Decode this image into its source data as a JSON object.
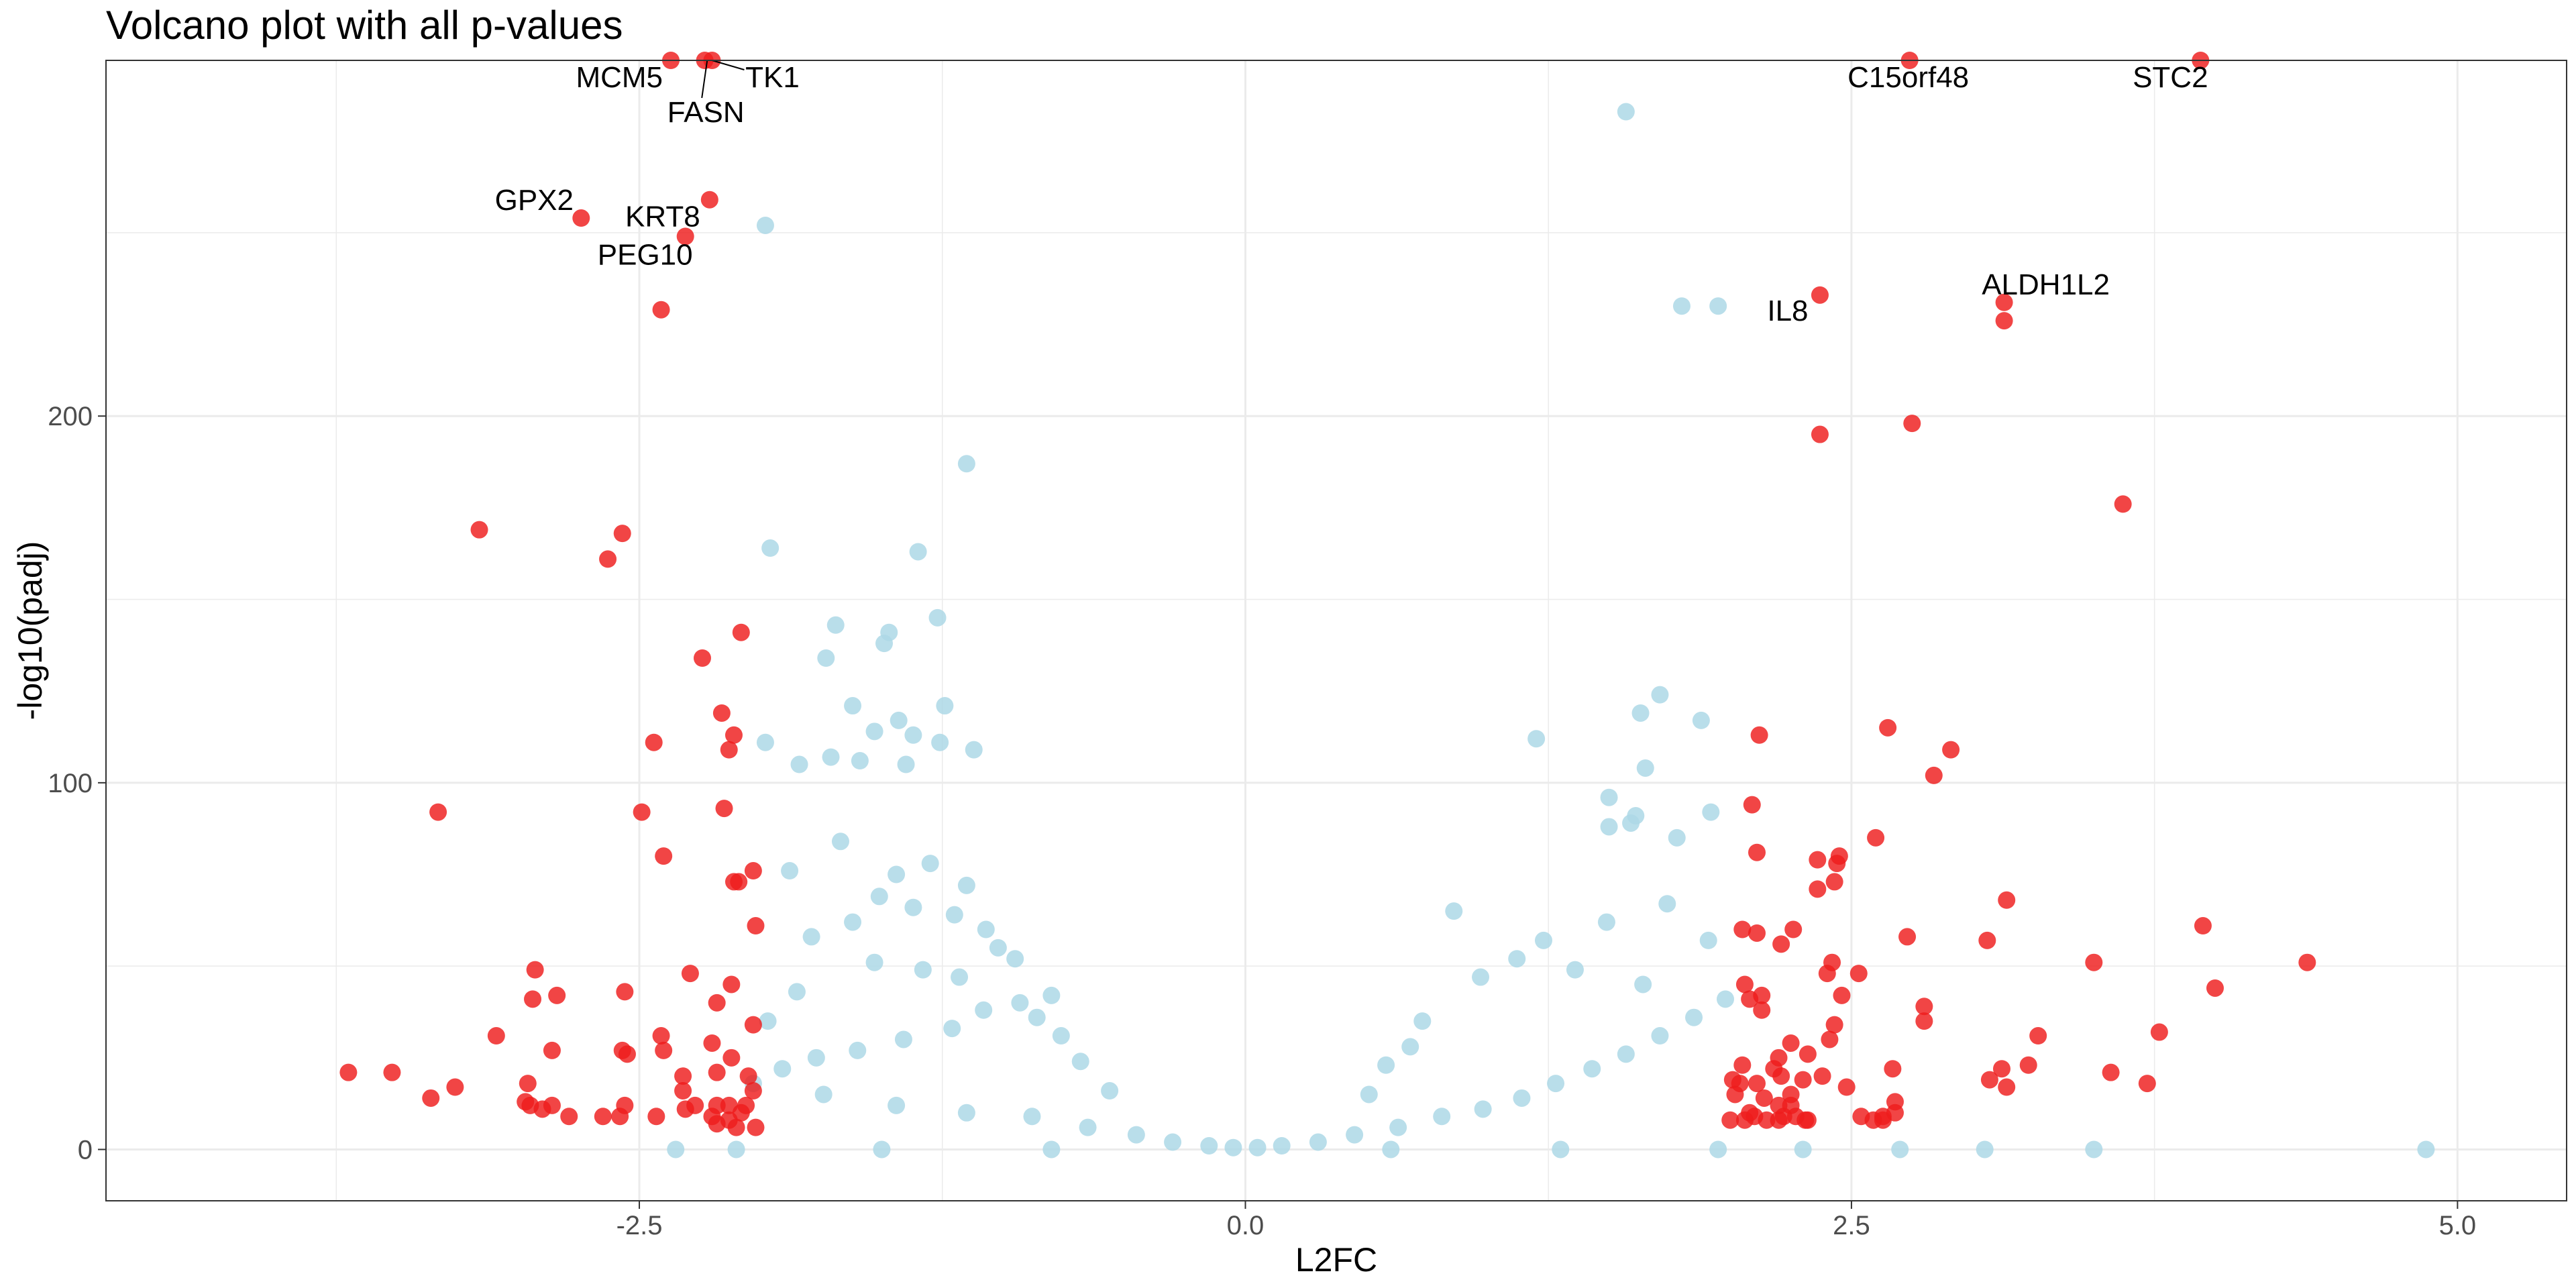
{
  "chart_data": {
    "type": "scatter",
    "title": "Volcano plot with all p-values",
    "xlabel": "L2FC",
    "ylabel": "-log10(padj)",
    "xlim": [
      -4.7,
      5.45
    ],
    "ylim": [
      -14,
      297
    ],
    "xticks": [
      -2.5,
      0.0,
      2.5,
      5.0
    ],
    "xtick_labels": [
      "-2.5",
      "0.0",
      "2.5",
      "5.0"
    ],
    "yticks": [
      0,
      100,
      200
    ],
    "ytick_labels": [
      "0",
      "100",
      "200"
    ],
    "grid": true,
    "legend": "none",
    "colors": {
      "not_significant": "#add8e6",
      "significant": "#ee1c1c",
      "panel_border": "#333333",
      "grid": "#ebebeb"
    },
    "series": [
      {
        "group": "significant",
        "points": [
          [
            -2.37,
            297
          ],
          [
            -2.23,
            297
          ],
          [
            -2.2,
            297
          ],
          [
            -2.21,
            259
          ],
          [
            -2.74,
            254
          ],
          [
            -2.31,
            249
          ],
          [
            -2.41,
            229
          ],
          [
            -3.16,
            169
          ],
          [
            -2.57,
            168
          ],
          [
            -2.63,
            161
          ],
          [
            -2.08,
            141
          ],
          [
            -2.24,
            134
          ],
          [
            -2.16,
            119
          ],
          [
            -2.44,
            111
          ],
          [
            -2.11,
            113
          ],
          [
            -2.13,
            109
          ],
          [
            -3.33,
            92
          ],
          [
            -2.49,
            92
          ],
          [
            -2.15,
            93
          ],
          [
            -2.4,
            80
          ],
          [
            -2.03,
            76
          ],
          [
            -2.09,
            73
          ],
          [
            -2.11,
            73
          ],
          [
            -2.02,
            61
          ],
          [
            -2.93,
            49
          ],
          [
            -2.29,
            48
          ],
          [
            -2.84,
            42
          ],
          [
            -2.94,
            41
          ],
          [
            -2.56,
            43
          ],
          [
            -2.12,
            45
          ],
          [
            -2.18,
            40
          ],
          [
            -3.09,
            31
          ],
          [
            -2.41,
            31
          ],
          [
            -2.4,
            27
          ],
          [
            -2.2,
            29
          ],
          [
            -2.03,
            34
          ],
          [
            -2.57,
            27
          ],
          [
            -2.55,
            26
          ],
          [
            -2.86,
            27
          ],
          [
            -2.12,
            25
          ],
          [
            -2.96,
            18
          ],
          [
            -2.32,
            20
          ],
          [
            -2.18,
            21
          ],
          [
            -2.05,
            20
          ],
          [
            -3.26,
            17
          ],
          [
            -3.36,
            14
          ],
          [
            -2.97,
            13
          ],
          [
            -2.95,
            12
          ],
          [
            -2.86,
            12
          ],
          [
            -2.56,
            12
          ],
          [
            -2.31,
            11
          ],
          [
            -2.27,
            12
          ],
          [
            -2.18,
            12
          ],
          [
            -2.13,
            12
          ],
          [
            -2.06,
            12
          ],
          [
            -2.2,
            9
          ],
          [
            -2.08,
            10
          ],
          [
            -2.9,
            11
          ],
          [
            -2.79,
            9
          ],
          [
            -2.65,
            9
          ],
          [
            -2.58,
            9
          ],
          [
            -2.43,
            9
          ],
          [
            -2.18,
            7
          ],
          [
            -2.13,
            8
          ],
          [
            -2.1,
            6
          ],
          [
            -2.02,
            6
          ],
          [
            -3.7,
            21
          ],
          [
            -3.52,
            21
          ],
          [
            -2.32,
            16
          ],
          [
            -2.03,
            16
          ],
          [
            2.74,
            297
          ],
          [
            3.94,
            297
          ],
          [
            2.37,
            233
          ],
          [
            3.13,
            231
          ],
          [
            3.13,
            226
          ],
          [
            2.37,
            195
          ],
          [
            2.75,
            198
          ],
          [
            3.62,
            176
          ],
          [
            2.12,
            113
          ],
          [
            2.65,
            115
          ],
          [
            2.91,
            109
          ],
          [
            2.84,
            102
          ],
          [
            2.09,
            94
          ],
          [
            2.11,
            81
          ],
          [
            2.36,
            79
          ],
          [
            2.45,
            80
          ],
          [
            2.44,
            78
          ],
          [
            2.36,
            71
          ],
          [
            2.43,
            73
          ],
          [
            2.6,
            85
          ],
          [
            3.14,
            68
          ],
          [
            2.73,
            58
          ],
          [
            3.06,
            57
          ],
          [
            2.05,
            60
          ],
          [
            2.11,
            59
          ],
          [
            2.26,
            60
          ],
          [
            2.21,
            56
          ],
          [
            3.5,
            51
          ],
          [
            3.95,
            61
          ],
          [
            4.38,
            51
          ],
          [
            4.0,
            44
          ],
          [
            2.42,
            51
          ],
          [
            2.53,
            48
          ],
          [
            2.4,
            48
          ],
          [
            2.06,
            45
          ],
          [
            2.13,
            42
          ],
          [
            2.08,
            41
          ],
          [
            2.13,
            38
          ],
          [
            2.8,
            39
          ],
          [
            2.8,
            35
          ],
          [
            2.46,
            42
          ],
          [
            2.43,
            34
          ],
          [
            3.77,
            32
          ],
          [
            3.27,
            31
          ],
          [
            2.25,
            29
          ],
          [
            2.32,
            26
          ],
          [
            2.41,
            30
          ],
          [
            2.2,
            25
          ],
          [
            2.05,
            23
          ],
          [
            2.01,
            19
          ],
          [
            2.04,
            18
          ],
          [
            2.11,
            18
          ],
          [
            2.18,
            22
          ],
          [
            2.38,
            20
          ],
          [
            2.3,
            19
          ],
          [
            2.21,
            20
          ],
          [
            2.67,
            22
          ],
          [
            3.07,
            19
          ],
          [
            3.12,
            22
          ],
          [
            3.23,
            23
          ],
          [
            3.14,
            17
          ],
          [
            3.57,
            21
          ],
          [
            3.72,
            18
          ],
          [
            2.02,
            15
          ],
          [
            2.14,
            14
          ],
          [
            2.25,
            15
          ],
          [
            2.48,
            17
          ],
          [
            2.2,
            12
          ],
          [
            2.25,
            12
          ],
          [
            2.08,
            10
          ],
          [
            2.1,
            9
          ],
          [
            2.15,
            8
          ],
          [
            2.22,
            9
          ],
          [
            2.27,
            9
          ],
          [
            2.32,
            8
          ],
          [
            2.59,
            8
          ],
          [
            2.63,
            9
          ],
          [
            2.68,
            10
          ],
          [
            2.68,
            13
          ],
          [
            2.0,
            8
          ],
          [
            2.06,
            8
          ],
          [
            2.2,
            8
          ],
          [
            2.31,
            8
          ],
          [
            2.54,
            9
          ],
          [
            2.63,
            8
          ]
        ]
      },
      {
        "group": "not_significant",
        "points": [
          [
            1.57,
            283
          ],
          [
            -1.98,
            252
          ],
          [
            1.8,
            230
          ],
          [
            1.95,
            230
          ],
          [
            -1.15,
            187
          ],
          [
            -1.96,
            164
          ],
          [
            -1.35,
            163
          ],
          [
            -1.69,
            143
          ],
          [
            -1.27,
            145
          ],
          [
            -1.47,
            141
          ],
          [
            -1.73,
            134
          ],
          [
            -1.49,
            138
          ],
          [
            -1.62,
            121
          ],
          [
            -1.24,
            121
          ],
          [
            -1.43,
            117
          ],
          [
            -1.53,
            114
          ],
          [
            -1.26,
            111
          ],
          [
            -1.12,
            109
          ],
          [
            1.71,
            124
          ],
          [
            1.88,
            117
          ],
          [
            1.63,
            119
          ],
          [
            1.2,
            112
          ],
          [
            1.65,
            104
          ],
          [
            1.5,
            96
          ],
          [
            1.61,
            91
          ],
          [
            1.59,
            89
          ],
          [
            1.92,
            92
          ],
          [
            -1.98,
            111
          ],
          [
            -1.37,
            113
          ],
          [
            -1.4,
            105
          ],
          [
            -1.71,
            107
          ],
          [
            -1.59,
            106
          ],
          [
            -1.84,
            105
          ],
          [
            1.78,
            85
          ],
          [
            1.5,
            88
          ],
          [
            -1.02,
            55
          ],
          [
            -0.95,
            52
          ],
          [
            -1.3,
            78
          ],
          [
            -1.15,
            72
          ],
          [
            -1.51,
            69
          ],
          [
            -1.37,
            66
          ],
          [
            -1.62,
            62
          ],
          [
            -1.79,
            58
          ],
          [
            -1.53,
            51
          ],
          [
            -1.33,
            49
          ],
          [
            -1.18,
            47
          ],
          [
            -0.8,
            42
          ],
          [
            -0.93,
            40
          ],
          [
            -1.08,
            38
          ],
          [
            -1.21,
            33
          ],
          [
            -1.41,
            30
          ],
          [
            -1.6,
            27
          ],
          [
            -1.77,
            25
          ],
          [
            -1.91,
            22
          ],
          [
            -2.03,
            18
          ],
          [
            -1.74,
            15
          ],
          [
            -1.44,
            12
          ],
          [
            -1.15,
            10
          ],
          [
            -0.88,
            9
          ],
          [
            -0.65,
            6
          ],
          [
            -0.45,
            4
          ],
          [
            -0.3,
            2
          ],
          [
            -0.15,
            1
          ],
          [
            -0.05,
            0.5
          ],
          [
            0.05,
            0.5
          ],
          [
            0.15,
            1
          ],
          [
            0.3,
            2
          ],
          [
            0.45,
            4
          ],
          [
            0.63,
            6
          ],
          [
            0.81,
            9
          ],
          [
            0.98,
            11
          ],
          [
            1.14,
            14
          ],
          [
            1.28,
            18
          ],
          [
            1.43,
            22
          ],
          [
            1.57,
            26
          ],
          [
            1.71,
            31
          ],
          [
            1.85,
            36
          ],
          [
            1.98,
            41
          ],
          [
            1.64,
            45
          ],
          [
            1.36,
            49
          ],
          [
            1.12,
            52
          ],
          [
            0.97,
            47
          ],
          [
            1.23,
            57
          ],
          [
            1.49,
            62
          ],
          [
            1.74,
            67
          ],
          [
            1.91,
            57
          ],
          [
            0.86,
            65
          ],
          [
            0.73,
            35
          ],
          [
            0.68,
            28
          ],
          [
            0.58,
            23
          ],
          [
            0.51,
            15
          ],
          [
            -0.56,
            16
          ],
          [
            -0.68,
            24
          ],
          [
            -0.76,
            31
          ],
          [
            -0.86,
            36
          ],
          [
            -1.07,
            60
          ],
          [
            -1.2,
            64
          ],
          [
            -1.44,
            75
          ],
          [
            -1.67,
            84
          ],
          [
            -1.88,
            76
          ],
          [
            -1.85,
            43
          ],
          [
            -1.97,
            35
          ],
          [
            -2.35,
            0
          ],
          [
            -2.1,
            0
          ],
          [
            -1.5,
            0
          ],
          [
            -0.8,
            0
          ],
          [
            0.6,
            0
          ],
          [
            1.3,
            0
          ],
          [
            1.95,
            0
          ],
          [
            2.3,
            0
          ],
          [
            2.7,
            0
          ],
          [
            3.05,
            0
          ],
          [
            3.5,
            0
          ],
          [
            4.87,
            0
          ]
        ]
      }
    ],
    "labels": [
      {
        "text": "MCM5",
        "x": -2.37,
        "y": 297
      },
      {
        "text": "TK1",
        "x": -2.2,
        "y": 297
      },
      {
        "text": "FASN",
        "x": -2.22,
        "y": 297
      },
      {
        "text": "GPX2",
        "x": -2.74,
        "y": 254
      },
      {
        "text": "KRT8",
        "x": -2.21,
        "y": 259
      },
      {
        "text": "PEG10",
        "x": -2.31,
        "y": 249
      },
      {
        "text": "C15orf48",
        "x": 2.74,
        "y": 297
      },
      {
        "text": "STC2",
        "x": 3.94,
        "y": 297
      },
      {
        "text": "IL8",
        "x": 2.37,
        "y": 233
      },
      {
        "text": "ALDH1L2",
        "x": 3.13,
        "y": 231
      }
    ]
  }
}
